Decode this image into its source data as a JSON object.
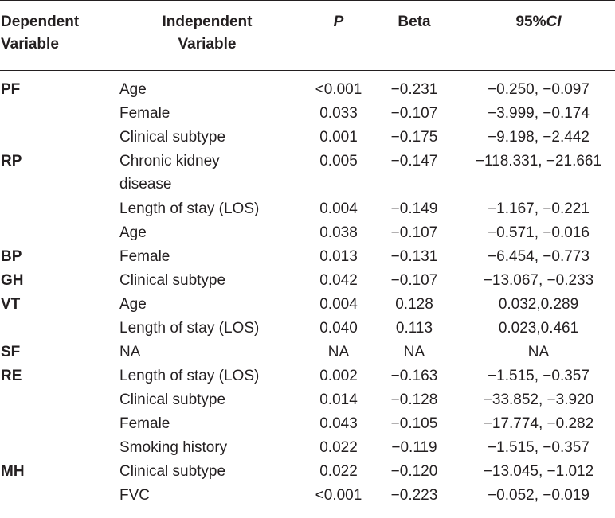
{
  "headers": {
    "dep_line1": "Dependent",
    "dep_line2": "Variable",
    "ind_line1": "Independent",
    "ind_line2": "Variable",
    "p": "P",
    "beta": "Beta",
    "ci_prefix": "95%",
    "ci_italic": "CI"
  },
  "rows": [
    {
      "dep": "PF",
      "ind": "Age",
      "p": "<0.001",
      "beta": "−0.231",
      "ci": "−0.250, −0.097"
    },
    {
      "dep": "",
      "ind": "Female",
      "p": "0.033",
      "beta": "−0.107",
      "ci": "−3.999, −0.174"
    },
    {
      "dep": "",
      "ind": "Clinical subtype",
      "p": "0.001",
      "beta": "−0.175",
      "ci": "−9.198, −2.442"
    },
    {
      "dep": "RP",
      "ind": "Chronic kidney",
      "ind2": "disease",
      "p": "0.005",
      "beta": "−0.147",
      "ci": "−118.331, −21.661"
    },
    {
      "dep": "",
      "ind": "Length of stay (LOS)",
      "p": "0.004",
      "beta": "−0.149",
      "ci": "−1.167, −0.221"
    },
    {
      "dep": "",
      "ind": "Age",
      "p": "0.038",
      "beta": "−0.107",
      "ci": "−0.571, −0.016"
    },
    {
      "dep": "BP",
      "ind": "Female",
      "p": "0.013",
      "beta": "−0.131",
      "ci": "−6.454, −0.773"
    },
    {
      "dep": "GH",
      "ind": "Clinical subtype",
      "p": "0.042",
      "beta": "−0.107",
      "ci": "−13.067, −0.233"
    },
    {
      "dep": "VT",
      "ind": "Age",
      "p": "0.004",
      "beta": "0.128",
      "ci": "0.032,0.289"
    },
    {
      "dep": "",
      "ind": "Length of stay (LOS)",
      "p": "0.040",
      "beta": "0.113",
      "ci": "0.023,0.461"
    },
    {
      "dep": "SF",
      "ind": "NA",
      "p": "NA",
      "beta": "NA",
      "ci": "NA"
    },
    {
      "dep": "RE",
      "ind": "Length of stay (LOS)",
      "p": "0.002",
      "beta": "−0.163",
      "ci": "−1.515, −0.357"
    },
    {
      "dep": "",
      "ind": "Clinical subtype",
      "p": "0.014",
      "beta": "−0.128",
      "ci": "−33.852, −3.920"
    },
    {
      "dep": "",
      "ind": "Female",
      "p": "0.043",
      "beta": "−0.105",
      "ci": "−17.774, −0.282"
    },
    {
      "dep": "",
      "ind": "Smoking history",
      "p": "0.022",
      "beta": "−0.119",
      "ci": "−1.515, −0.357"
    },
    {
      "dep": "MH",
      "ind": "Clinical subtype",
      "p": "0.022",
      "beta": "−0.120",
      "ci": "−13.045, −1.012"
    },
    {
      "dep": "",
      "ind": "FVC",
      "p": "<0.001",
      "beta": "−0.223",
      "ci": "−0.052, −0.019"
    }
  ]
}
